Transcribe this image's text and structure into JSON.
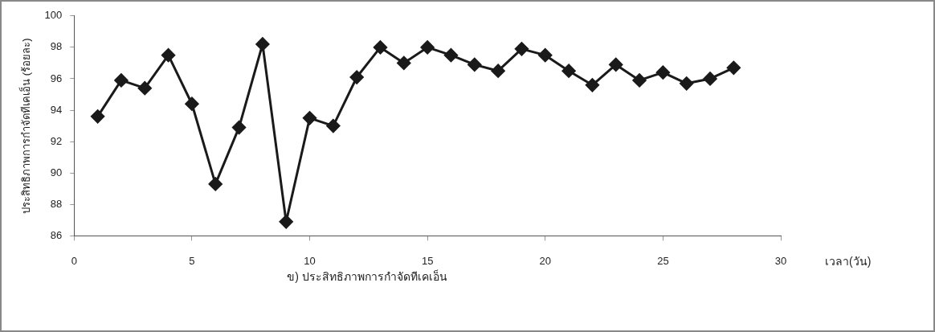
{
  "chart_data": {
    "type": "line",
    "xlabel": "เวลา(วัน)",
    "ylabel": "ประสิทธิภาพการกำจัดทีเคเอ็น (ร้อยละ)",
    "annotations": [
      "ข) ประสิทธิภาพการกำจัดทีเคเอ็น"
    ],
    "x": [
      1,
      2,
      3,
      4,
      5,
      6,
      7,
      8,
      9,
      10,
      11,
      12,
      13,
      14,
      15,
      16,
      17,
      18,
      19,
      20,
      21,
      22,
      23,
      24,
      25,
      26,
      27,
      28
    ],
    "series": [
      {
        "color": "#1a1a1a",
        "values": [
          93.6,
          95.9,
          95.4,
          97.5,
          94.4,
          89.3,
          92.9,
          98.2,
          86.9,
          93.5,
          93.0,
          96.1,
          98.0,
          97.0,
          98.0,
          97.5,
          96.9,
          96.5,
          97.9,
          97.5,
          96.5,
          95.6,
          96.9,
          95.9,
          96.4,
          95.7,
          96.0,
          96.7
        ]
      }
    ],
    "xlim": [
      0,
      30
    ],
    "xticks": [
      0,
      5,
      10,
      15,
      20,
      25,
      30
    ],
    "ylim": [
      86,
      100
    ],
    "yticks": [
      86,
      88,
      90,
      92,
      94,
      96,
      98,
      100
    ],
    "grid": false,
    "legend": false,
    "marker": "diamond",
    "line_style": "solid"
  }
}
